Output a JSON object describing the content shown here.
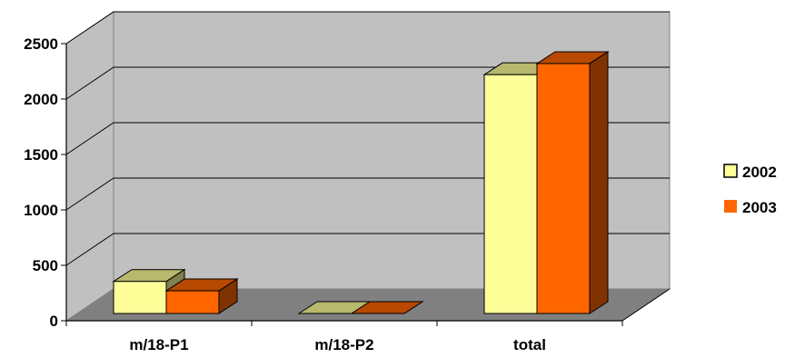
{
  "chart_data": {
    "type": "bar",
    "title": "",
    "xlabel": "",
    "ylabel": "",
    "categories": [
      "m/18-P1",
      "m/18-P2",
      "total"
    ],
    "series": [
      {
        "name": "2002",
        "values": [
          355,
          5,
          2220
        ],
        "color": "#ffff99"
      },
      {
        "name": "2003",
        "values": [
          270,
          5,
          2320
        ],
        "color": "#ff6600"
      }
    ],
    "ylim": [
      0,
      2500
    ],
    "yticks": [
      0,
      500,
      1000,
      1500,
      2000,
      2500
    ],
    "ytick_labels": [
      "0",
      "500",
      "1000",
      "1500",
      "2000",
      "2500"
    ],
    "grid": true,
    "legend_position": "right",
    "wall_color": "#c0c0c0",
    "floor_color": "#808080"
  }
}
